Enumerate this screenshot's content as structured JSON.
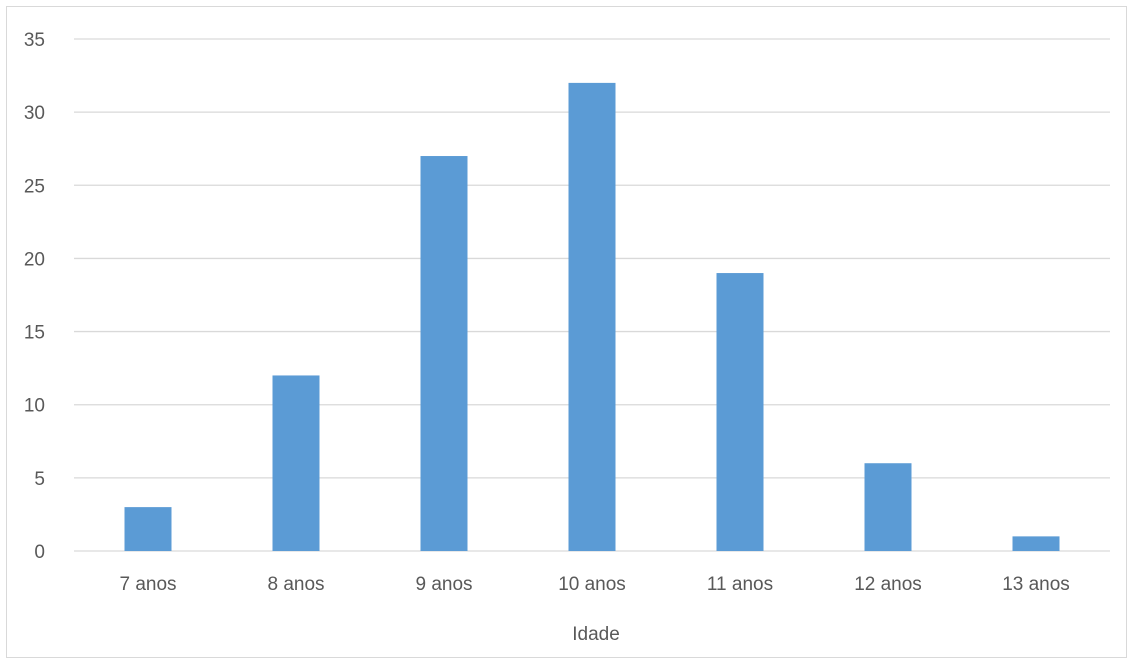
{
  "chart_data": {
    "type": "bar",
    "title": "",
    "xlabel": "Idade",
    "ylabel": "",
    "categories": [
      "7 anos",
      "8 anos",
      "9 anos",
      "10 anos",
      "11 anos",
      "12 anos",
      "13 anos"
    ],
    "values": [
      3,
      12,
      27,
      32,
      19,
      6,
      1
    ],
    "ylim": [
      0,
      35
    ],
    "yticks": [
      "0",
      "5",
      "10",
      "15",
      "20",
      "25",
      "30",
      "35"
    ],
    "grid": true,
    "legend": "none",
    "bar_color": "#5b9bd5",
    "grid_color": "#d9d9d9"
  }
}
